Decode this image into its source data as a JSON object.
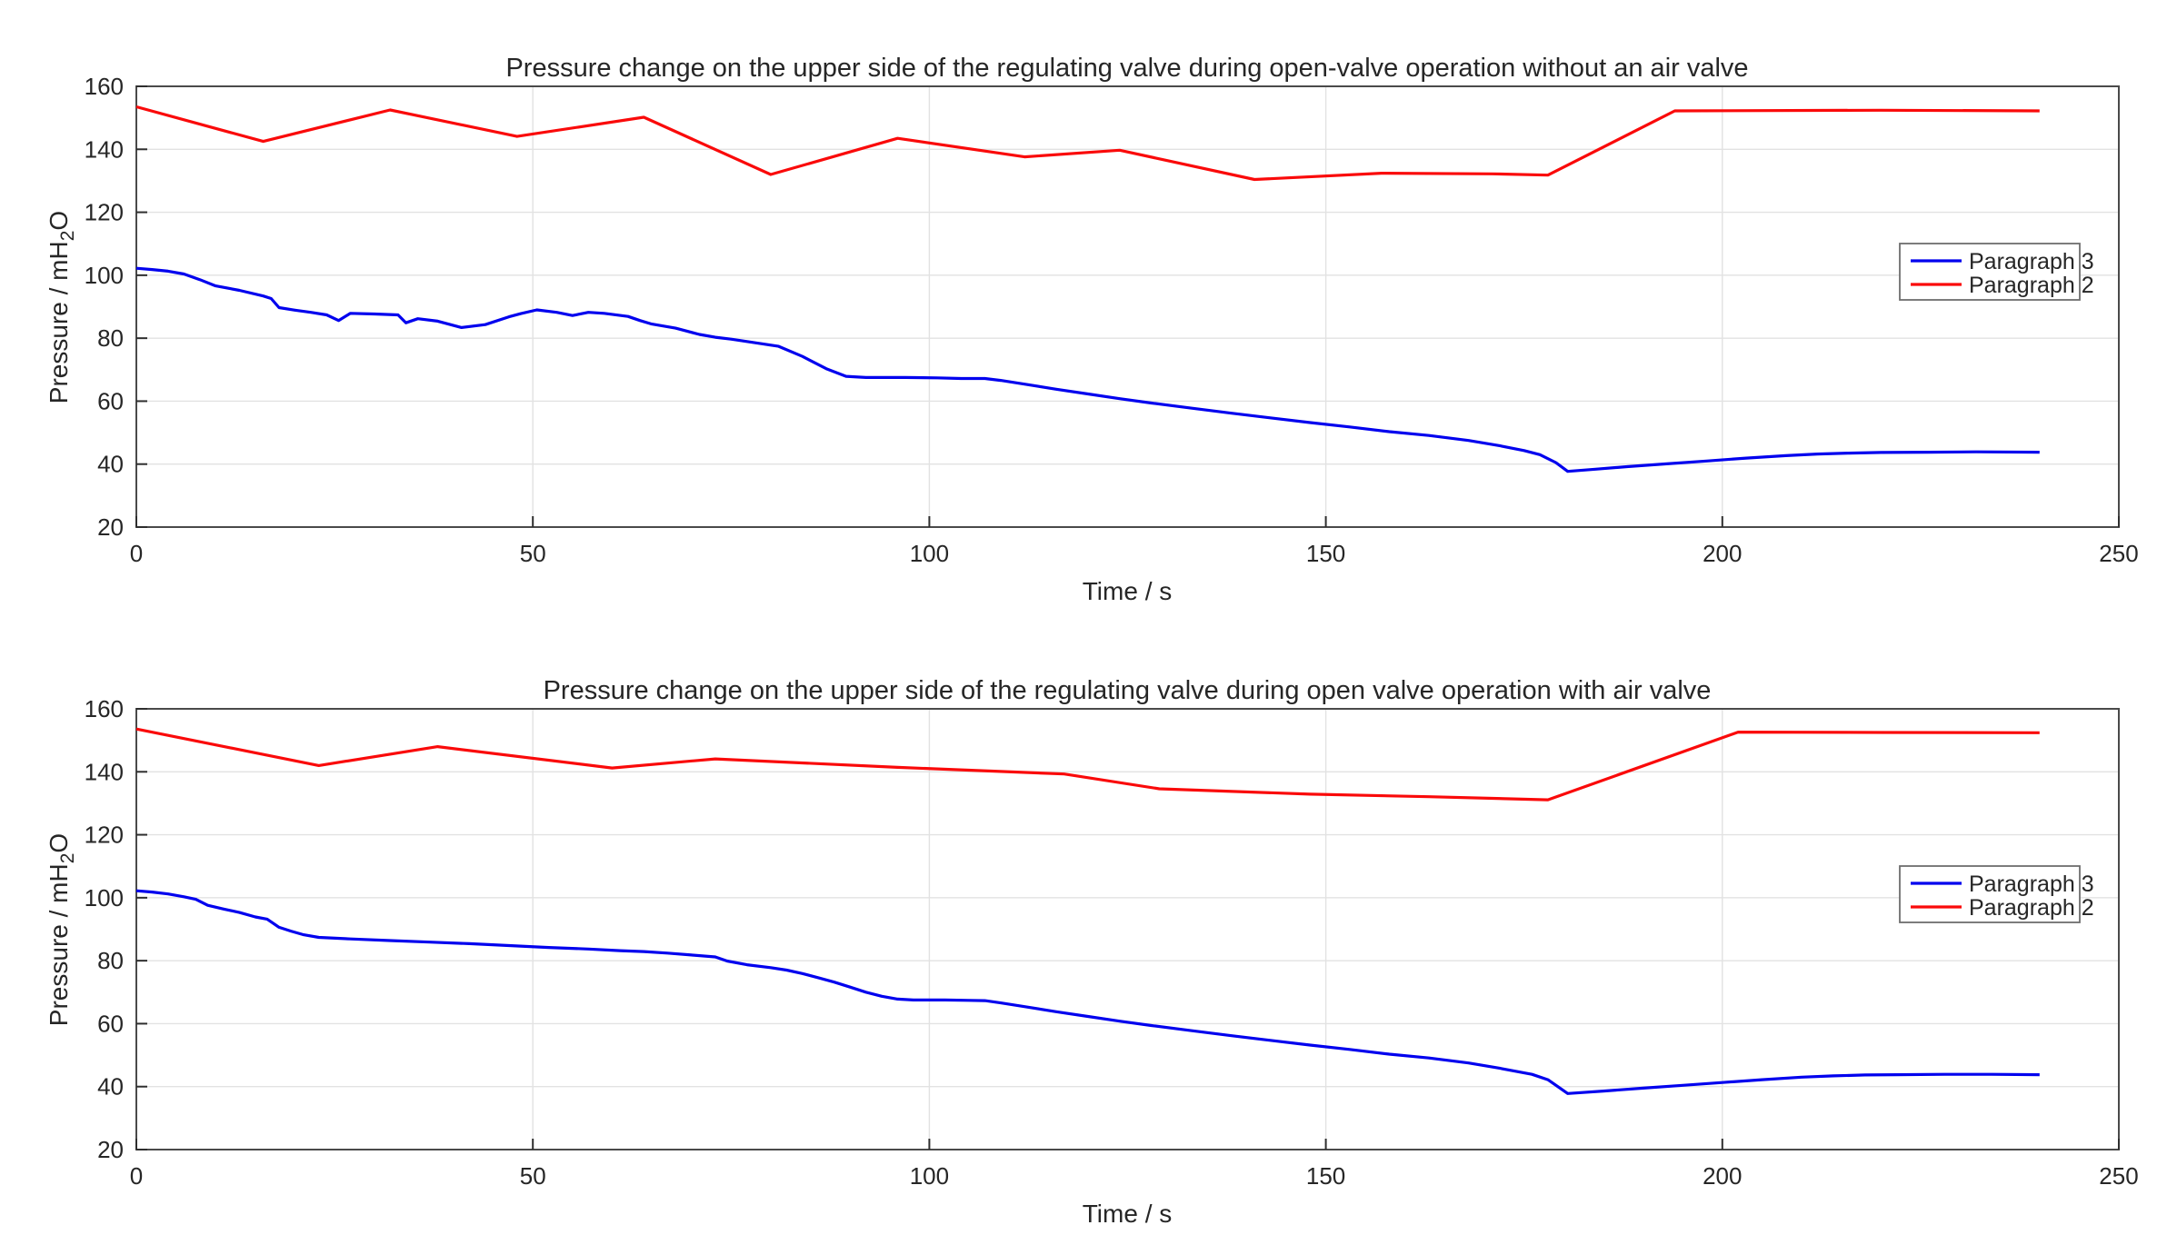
{
  "figure": {
    "background": "#ffffff"
  },
  "colors": {
    "paragraph3": "#0000ee",
    "paragraph2": "#fa0a0a",
    "grid": "#e2e2e2",
    "axis_box": "#4a4a4a",
    "text": "#262626"
  },
  "chart_data": [
    {
      "type": "line",
      "title": "Pressure change on the upper side of the regulating valve during open-valve operation without an air valve",
      "xlabel": "Time / s",
      "ylabel": "Pressure / mH2O",
      "ylabel_parts": [
        "Pressure / mH",
        "2",
        "O"
      ],
      "xlim": [
        0,
        250
      ],
      "ylim": [
        20,
        160
      ],
      "xticks": [
        0,
        50,
        100,
        150,
        200,
        250
      ],
      "yticks": [
        20,
        40,
        60,
        80,
        100,
        120,
        140,
        160
      ],
      "grid": true,
      "legend_position": "right-center",
      "series": [
        {
          "name": "Paragraph 3",
          "color": "#0000ee",
          "points": [
            [
              0,
              102.2
            ],
            [
              2,
              101.8
            ],
            [
              4,
              101.3
            ],
            [
              6,
              100.4
            ],
            [
              8,
              98.6
            ],
            [
              10,
              96.6
            ],
            [
              13,
              95.2
            ],
            [
              16,
              93.4
            ],
            [
              17,
              92.6
            ],
            [
              18,
              89.7
            ],
            [
              20,
              88.9
            ],
            [
              22,
              88.2
            ],
            [
              24,
              87.4
            ],
            [
              25.5,
              85.6
            ],
            [
              27,
              87.9
            ],
            [
              30,
              87.7
            ],
            [
              33,
              87.4
            ],
            [
              34,
              84.9
            ],
            [
              35.5,
              86.2
            ],
            [
              38,
              85.4
            ],
            [
              41,
              83.4
            ],
            [
              44,
              84.3
            ],
            [
              47,
              86.8
            ],
            [
              48.5,
              87.8
            ],
            [
              50.5,
              89.0
            ],
            [
              53,
              88.2
            ],
            [
              55,
              87.2
            ],
            [
              57,
              88.2
            ],
            [
              59,
              87.9
            ],
            [
              62,
              86.9
            ],
            [
              63.5,
              85.6
            ],
            [
              65,
              84.5
            ],
            [
              68,
              83.2
            ],
            [
              71,
              81.2
            ],
            [
              73,
              80.3
            ],
            [
              75,
              79.7
            ],
            [
              79,
              78.2
            ],
            [
              81,
              77.4
            ],
            [
              84,
              74.2
            ],
            [
              87,
              70.3
            ],
            [
              89.5,
              67.9
            ],
            [
              92,
              67.5
            ],
            [
              97,
              67.5
            ],
            [
              101,
              67.4
            ],
            [
              104,
              67.2
            ],
            [
              107,
              67.2
            ],
            [
              109,
              66.6
            ],
            [
              112,
              65.4
            ],
            [
              116,
              63.8
            ],
            [
              120,
              62.3
            ],
            [
              124,
              60.8
            ],
            [
              128,
              59.4
            ],
            [
              133,
              57.8
            ],
            [
              138,
              56.2
            ],
            [
              143,
              54.7
            ],
            [
              148,
              53.2
            ],
            [
              153,
              51.8
            ],
            [
              158,
              50.3
            ],
            [
              163,
              49.1
            ],
            [
              168,
              47.5
            ],
            [
              172,
              45.8
            ],
            [
              175,
              44.3
            ],
            [
              177,
              43.0
            ],
            [
              179,
              40.5
            ],
            [
              180.5,
              37.7
            ],
            [
              184,
              38.4
            ],
            [
              188,
              39.2
            ],
            [
              193,
              40.1
            ],
            [
              198,
              41.0
            ],
            [
              203,
              41.9
            ],
            [
              208,
              42.7
            ],
            [
              212,
              43.2
            ],
            [
              216,
              43.5
            ],
            [
              220,
              43.7
            ],
            [
              226,
              43.8
            ],
            [
              232,
              43.9
            ],
            [
              240,
              43.8
            ]
          ]
        },
        {
          "name": "Paragraph 2",
          "color": "#fa0a0a",
          "points": [
            [
              0,
              153.5
            ],
            [
              16,
              142.5
            ],
            [
              32,
              152.5
            ],
            [
              48,
              144.1
            ],
            [
              64,
              150.2
            ],
            [
              80,
              132.0
            ],
            [
              96,
              143.5
            ],
            [
              112,
              137.6
            ],
            [
              124,
              139.7
            ],
            [
              141,
              130.4
            ],
            [
              157,
              132.4
            ],
            [
              171,
              132.2
            ],
            [
              178,
              131.8
            ],
            [
              194,
              152.2
            ],
            [
              220,
              152.4
            ],
            [
              240,
              152.2
            ]
          ]
        }
      ]
    },
    {
      "type": "line",
      "title": "Pressure change on the upper side of the regulating valve during open valve operation with air valve",
      "xlabel": "Time / s",
      "ylabel": "Pressure / mH2O",
      "ylabel_parts": [
        "Pressure / mH",
        "2",
        "O"
      ],
      "xlim": [
        0,
        250
      ],
      "ylim": [
        20,
        160
      ],
      "xticks": [
        0,
        50,
        100,
        150,
        200,
        250
      ],
      "yticks": [
        20,
        40,
        60,
        80,
        100,
        120,
        140,
        160
      ],
      "grid": true,
      "legend_position": "right-center",
      "series": [
        {
          "name": "Paragraph 3",
          "color": "#0000ee",
          "points": [
            [
              0,
              102.2
            ],
            [
              2,
              101.8
            ],
            [
              4,
              101.2
            ],
            [
              6,
              100.3
            ],
            [
              7.5,
              99.5
            ],
            [
              9,
              97.6
            ],
            [
              11,
              96.4
            ],
            [
              13,
              95.3
            ],
            [
              15,
              93.9
            ],
            [
              16.5,
              93.2
            ],
            [
              18,
              90.6
            ],
            [
              19.5,
              89.4
            ],
            [
              21,
              88.3
            ],
            [
              23,
              87.4
            ],
            [
              27,
              86.9
            ],
            [
              32,
              86.4
            ],
            [
              37,
              85.9
            ],
            [
              42,
              85.4
            ],
            [
              47,
              84.8
            ],
            [
              52,
              84.2
            ],
            [
              57,
              83.7
            ],
            [
              61,
              83.2
            ],
            [
              64,
              82.9
            ],
            [
              67,
              82.4
            ],
            [
              70,
              81.8
            ],
            [
              73,
              81.2
            ],
            [
              74.5,
              79.9
            ],
            [
              77,
              78.7
            ],
            [
              80,
              77.8
            ],
            [
              82,
              77.0
            ],
            [
              84,
              75.9
            ],
            [
              86,
              74.6
            ],
            [
              88,
              73.2
            ],
            [
              90,
              71.6
            ],
            [
              92,
              70.0
            ],
            [
              94,
              68.7
            ],
            [
              96,
              67.8
            ],
            [
              98,
              67.5
            ],
            [
              102,
              67.5
            ],
            [
              105,
              67.4
            ],
            [
              107,
              67.3
            ],
            [
              109,
              66.6
            ],
            [
              112,
              65.4
            ],
            [
              116,
              63.8
            ],
            [
              120,
              62.3
            ],
            [
              124,
              60.8
            ],
            [
              128,
              59.4
            ],
            [
              133,
              57.8
            ],
            [
              138,
              56.2
            ],
            [
              143,
              54.7
            ],
            [
              148,
              53.2
            ],
            [
              153,
              51.8
            ],
            [
              158,
              50.3
            ],
            [
              163,
              49.1
            ],
            [
              168,
              47.5
            ],
            [
              172,
              45.8
            ],
            [
              176,
              43.9
            ],
            [
              178,
              42.2
            ],
            [
              180.5,
              37.8
            ],
            [
              185,
              38.6
            ],
            [
              190,
              39.5
            ],
            [
              195,
              40.4
            ],
            [
              200,
              41.3
            ],
            [
              205,
              42.2
            ],
            [
              210,
              43.0
            ],
            [
              214,
              43.4
            ],
            [
              218,
              43.7
            ],
            [
              222,
              43.8
            ],
            [
              228,
              43.9
            ],
            [
              234,
              43.9
            ],
            [
              240,
              43.8
            ]
          ]
        },
        {
          "name": "Paragraph 2",
          "color": "#fa0a0a",
          "points": [
            [
              0,
              153.6
            ],
            [
              23,
              142.0
            ],
            [
              38,
              148.0
            ],
            [
              60,
              141.2
            ],
            [
              73,
              144.1
            ],
            [
              96,
              141.4
            ],
            [
              117,
              139.3
            ],
            [
              129,
              134.6
            ],
            [
              148,
              132.9
            ],
            [
              163,
              132.1
            ],
            [
              178,
              131.1
            ],
            [
              202,
              152.6
            ],
            [
              220,
              152.5
            ],
            [
              240,
              152.4
            ]
          ]
        }
      ]
    }
  ]
}
